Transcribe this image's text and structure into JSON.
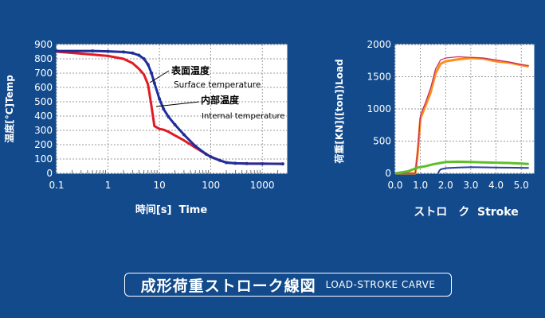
{
  "colors": {
    "background": "#124a8c",
    "plot_background": "#ffffff",
    "surface_line": "#e01a22",
    "internal_line": "#1f2e9a",
    "load_curve": "#ff8c1a",
    "load_curve_2": "#c22a66",
    "green_curve": "#5cbf2a",
    "blue_curve": "#2a3fa6"
  },
  "chart_data": [
    {
      "type": "line",
      "xlabel": "時间[s]  Time",
      "ylabel": "温度[°C]Temp",
      "xscale": "log",
      "xlim": [
        0.1,
        3000
      ],
      "ylim": [
        0,
        900
      ],
      "xticks": [
        "0.1",
        "1",
        "10",
        "100",
        "1000"
      ],
      "yticks": [
        "0",
        "100",
        "200",
        "300",
        "400",
        "500",
        "600",
        "700",
        "800",
        "900"
      ],
      "grid": true,
      "annotations": {
        "surface_ja": "表面温度",
        "surface_en": "Surface temperature",
        "internal_ja": "内部温度",
        "internal_en": "Internal temperature"
      },
      "series": [
        {
          "key": "surface",
          "x": [
            0.1,
            0.5,
            1,
            2,
            3,
            4,
            5,
            6,
            7,
            8,
            10,
            12,
            15,
            20,
            30,
            50,
            80,
            100,
            150,
            200,
            300,
            500,
            1000,
            2500
          ],
          "y": [
            850,
            830,
            820,
            800,
            770,
            730,
            690,
            620,
            470,
            330,
            310,
            305,
            290,
            265,
            230,
            180,
            135,
            115,
            90,
            75,
            70,
            68,
            67,
            66
          ]
        },
        {
          "key": "internal",
          "x": [
            0.1,
            0.5,
            1,
            2,
            3,
            4,
            5,
            6,
            7,
            8,
            10,
            12,
            15,
            20,
            30,
            50,
            80,
            100,
            150,
            200,
            300,
            500,
            1000,
            2500
          ],
          "y": [
            855,
            855,
            852,
            848,
            840,
            825,
            800,
            760,
            700,
            630,
            520,
            450,
            395,
            340,
            270,
            190,
            135,
            115,
            90,
            75,
            70,
            68,
            67,
            66
          ]
        }
      ]
    },
    {
      "type": "line",
      "xlabel": "ストロ　ク  Stroke",
      "ylabel": "荷重[KN]([ton])Load",
      "xlim": [
        0,
        5.5
      ],
      "ylim": [
        0,
        2000
      ],
      "xticks": [
        "0.0",
        "1.0",
        "2.0",
        "3.0",
        "4.0",
        "5.0"
      ],
      "yticks": [
        "0",
        "500",
        "1000",
        "1500",
        "2000"
      ],
      "grid": true,
      "series": [
        {
          "key": "load_a",
          "x": [
            0.0,
            0.8,
            0.9,
            1.0,
            1.2,
            1.4,
            1.6,
            1.8,
            2.0,
            2.5,
            3.0,
            3.5,
            4.0,
            4.5,
            5.0,
            5.3
          ],
          "y": [
            0,
            0,
            350,
            850,
            1050,
            1250,
            1550,
            1700,
            1740,
            1770,
            1790,
            1780,
            1740,
            1720,
            1680,
            1660
          ]
        },
        {
          "key": "load_b",
          "x": [
            0.0,
            0.8,
            0.9,
            1.0,
            1.2,
            1.4,
            1.6,
            1.8,
            2.0,
            2.5,
            3.0,
            3.5,
            4.0,
            4.5,
            5.0,
            5.3
          ],
          "y": [
            0,
            0,
            400,
            900,
            1100,
            1320,
            1620,
            1760,
            1790,
            1810,
            1800,
            1790,
            1760,
            1730,
            1690,
            1670
          ]
        },
        {
          "key": "green",
          "x": [
            0.0,
            0.5,
            0.9,
            1.2,
            1.5,
            1.8,
            2.0,
            2.5,
            3.0,
            3.5,
            4.0,
            4.5,
            5.0,
            5.3
          ],
          "y": [
            0,
            30,
            90,
            110,
            140,
            160,
            175,
            180,
            175,
            170,
            165,
            160,
            150,
            145
          ]
        },
        {
          "key": "blue",
          "x": [
            1.7,
            1.75,
            1.8,
            2.0,
            2.5,
            3.0,
            3.5,
            4.0,
            4.5,
            5.0,
            5.3
          ],
          "y": [
            0,
            40,
            60,
            80,
            90,
            95,
            92,
            90,
            88,
            85,
            84
          ]
        }
      ]
    }
  ],
  "caption": {
    "japanese": "成形荷重ストローク線図",
    "english": "LOAD-STROKE CARVE"
  }
}
